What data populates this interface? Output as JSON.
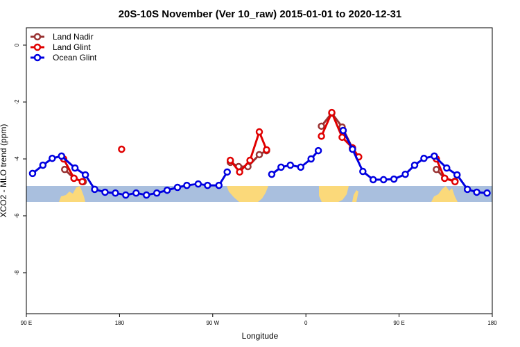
{
  "chart_data": {
    "type": "line",
    "title": "20S-10S November (Ver 10_raw)   2015-01-01 to 2020-12-31",
    "xlabel": "Longitude",
    "ylabel": "XCO2 - MLO trend (ppm)",
    "xlim": [
      90,
      540
    ],
    "ylim": [
      -9.44,
      0.61
    ],
    "xticks": [
      {
        "value": 90,
        "label": "90 E"
      },
      {
        "value": 180,
        "label": "180"
      },
      {
        "value": 270,
        "label": "90 W"
      },
      {
        "value": 360,
        "label": "0"
      },
      {
        "value": 450,
        "label": "90 E"
      },
      {
        "value": 540,
        "label": "180"
      }
    ],
    "yticks": [
      0,
      -2,
      -4,
      -6,
      -8
    ],
    "legend": "upper left",
    "series": [
      {
        "name": "Land Nadir",
        "color": "#993333",
        "x": [
          127,
          136,
          145,
          null,
          287,
          295,
          304,
          315,
          322,
          null,
          375,
          385,
          395,
          405,
          null,
          486,
          494,
          504
        ],
        "values": [
          -4.37,
          -4.68,
          -4.8,
          null,
          -4.12,
          -4.27,
          -4.27,
          -3.85,
          -3.71,
          null,
          -2.85,
          -2.39,
          -2.88,
          -3.63,
          null,
          -4.37,
          -4.68,
          -4.78
        ]
      },
      {
        "name": "Land Glint",
        "color": "#e00000",
        "x": [
          126,
          136,
          144,
          null,
          182,
          null,
          287,
          296,
          306,
          315,
          322,
          null,
          375,
          385,
          395,
          405,
          411,
          null,
          486,
          494,
          504
        ],
        "values": [
          -4.0,
          -4.68,
          -4.8,
          null,
          -3.66,
          null,
          -4.05,
          -4.46,
          -4.05,
          -3.05,
          -3.68,
          null,
          -3.2,
          -2.37,
          -3.24,
          -3.61,
          -3.93,
          null,
          -4.0,
          -4.68,
          -4.8
        ]
      },
      {
        "name": "Ocean Glint",
        "color": "#0000e0",
        "x": [
          96,
          106,
          115,
          124,
          137,
          147,
          156,
          166,
          176,
          186,
          196,
          206,
          216,
          226,
          236,
          245,
          256,
          265,
          276,
          284,
          null,
          327,
          336,
          345,
          355,
          365,
          372,
          null,
          396,
          405,
          415,
          425,
          435,
          445,
          456,
          465,
          474,
          484,
          496,
          506,
          516,
          525,
          535
        ],
        "values": [
          -4.51,
          -4.22,
          -3.98,
          -3.9,
          -4.32,
          -4.56,
          -5.07,
          -5.17,
          -5.2,
          -5.27,
          -5.2,
          -5.27,
          -5.2,
          -5.1,
          -5.0,
          -4.93,
          -4.88,
          -4.93,
          -4.93,
          -4.46,
          null,
          -4.54,
          -4.29,
          -4.22,
          -4.29,
          -4.0,
          -3.71,
          null,
          -3.0,
          -3.66,
          -4.44,
          -4.73,
          -4.73,
          -4.71,
          -4.54,
          -4.22,
          -3.98,
          -3.9,
          -4.32,
          -4.56,
          -5.07,
          -5.17,
          -5.2
        ]
      }
    ]
  }
}
